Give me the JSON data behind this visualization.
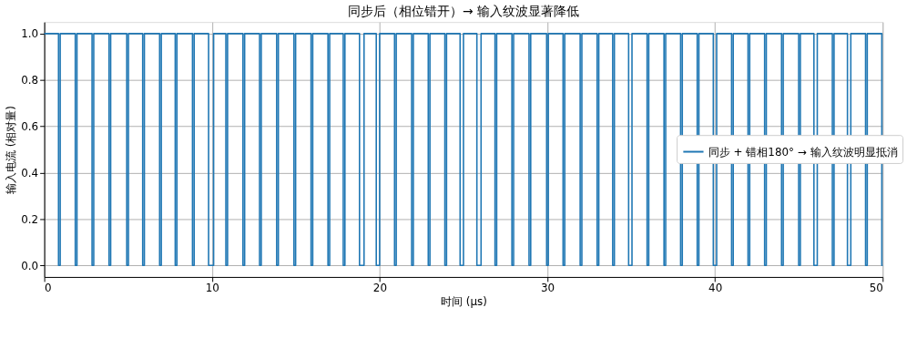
{
  "chart_data": {
    "type": "step",
    "title": "同步后（相位错开）→ 输入纹波显著降低",
    "xlabel": "时间 (μs)",
    "ylabel": "输入电流 (相对量)",
    "x": [
      0,
      0.85,
      0.95,
      1.85,
      1.95,
      2.85,
      2.95,
      3.86,
      3.96,
      4.92,
      5.02,
      5.87,
      5.97,
      6.88,
      6.98,
      7.81,
      7.91,
      8.84,
      8.94,
      9.8,
      10.1,
      10.83,
      10.93,
      11.85,
      11.95,
      12.84,
      12.94,
      13.86,
      13.96,
      14.89,
      14.99,
      15.91,
      16.01,
      16.92,
      17.02,
      17.83,
      17.93,
      18.8,
      19.07,
      19.8,
      20.0,
      20.89,
      20.99,
      21.91,
      22.01,
      22.9,
      23.0,
      23.89,
      23.99,
      24.8,
      25.0,
      25.8,
      26.05,
      26.88,
      26.98,
      27.89,
      27.99,
      28.91,
      29.01,
      29.96,
      30.06,
      30.94,
      31.04,
      31.96,
      32.06,
      32.97,
      33.07,
      33.9,
      34.0,
      34.85,
      35.05,
      35.95,
      36.05,
      36.96,
      37.06,
      37.95,
      38.05,
      38.94,
      39.04,
      39.9,
      40.1,
      40.99,
      41.09,
      41.97,
      42.07,
      42.96,
      43.06,
      43.97,
      44.07,
      44.99,
      45.09,
      45.9,
      46.1,
      47.0,
      47.1,
      47.9,
      48.1,
      48.98,
      49.08,
      49.95,
      50
    ],
    "series": [
      {
        "name": "同步 + 错相180° → 输入纹波明显抵消",
        "color": "#1f77b4",
        "values": [
          1,
          0,
          1,
          0,
          1,
          0,
          1,
          0,
          1,
          0,
          1,
          0,
          1,
          0,
          1,
          0,
          1,
          0,
          1,
          0,
          1,
          0,
          1,
          0,
          1,
          0,
          1,
          0,
          1,
          0,
          1,
          0,
          1,
          0,
          1,
          0,
          1,
          0,
          1,
          0,
          1,
          0,
          1,
          0,
          1,
          0,
          1,
          0,
          1,
          0,
          1,
          0,
          1,
          0,
          1,
          0,
          1,
          0,
          1,
          0,
          1,
          0,
          1,
          0,
          1,
          0,
          1,
          0,
          1,
          0,
          1,
          0,
          1,
          0,
          1,
          0,
          1,
          0,
          1,
          0,
          1,
          0,
          1,
          0,
          1,
          0,
          1,
          0,
          1,
          0,
          1,
          0,
          1,
          0,
          1,
          0,
          1,
          0,
          1,
          0,
          0
        ]
      }
    ],
    "xlim": [
      0,
      50
    ],
    "xticks": [
      0,
      10,
      20,
      30,
      40,
      50
    ],
    "ylim": [
      -0.05,
      1.05
    ],
    "yticks": [
      {
        "value": 0,
        "label": "0.0"
      },
      {
        "value": 0.2,
        "label": "0.2"
      },
      {
        "value": 0.4,
        "label": "0.4"
      },
      {
        "value": 0.6,
        "label": "0.6"
      },
      {
        "value": 0.8,
        "label": "0.8"
      },
      {
        "value": 1,
        "label": "1.0"
      }
    ],
    "grid": true,
    "legend": "right",
    "line_style": "solid",
    "marker": "none"
  }
}
